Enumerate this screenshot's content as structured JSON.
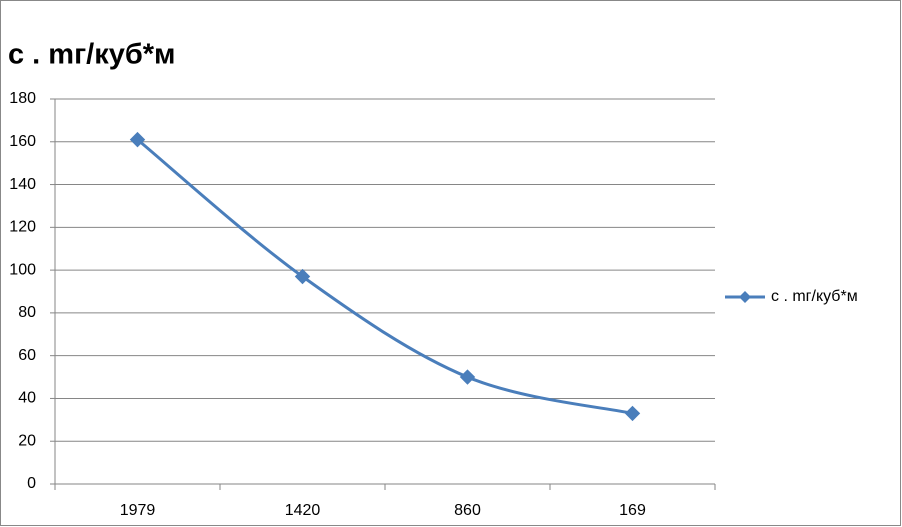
{
  "chart_data": {
    "type": "line",
    "title": "c . mг/куб*м",
    "categories": [
      "1979",
      "1420",
      "860",
      "169"
    ],
    "series": [
      {
        "name": "c . mг/куб*м",
        "color": "#4a7ebb",
        "values": [
          161,
          97,
          50,
          33
        ]
      }
    ],
    "ylim": [
      0,
      180
    ],
    "yticks": [
      0,
      20,
      40,
      60,
      80,
      100,
      120,
      140,
      160,
      180
    ],
    "grid": true,
    "smooth": true,
    "marker": "diamond",
    "legend": "right"
  }
}
